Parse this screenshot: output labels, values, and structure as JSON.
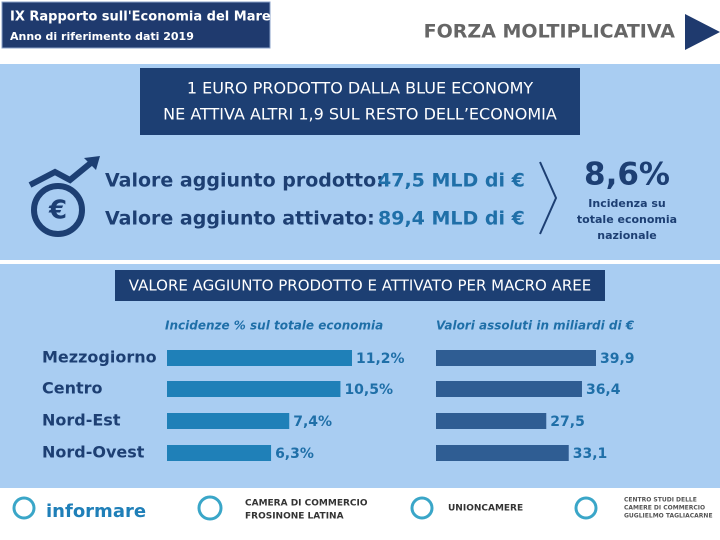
{
  "header": {
    "title": "IX Rapporto sull'Economia del Mare",
    "subtitle": "Anno di riferimento dati 2019",
    "section": "FORZA MOLTIPLICATIVA"
  },
  "banner": [
    "1 EURO PRODOTTO DALLA BLUE ECONOMY",
    "NE ATTIVA ALTRI 1,9 SUL RESTO DELL’ECONOMIA"
  ],
  "summary": {
    "rows": [
      [
        "Valore aggiunto prodotto:",
        "47,5 MLD di €"
      ],
      [
        "Valore aggiunto attivato:",
        "89,4 MLD di €"
      ]
    ],
    "share": "8,6%",
    "share_caption": [
      "Incidenza su",
      "totale economia",
      "nazionale"
    ]
  },
  "section_title": "VALORE AGGIUNTO PRODOTTO E ATTIVATO PER MACRO AREE",
  "chart_data": [
    {
      "type": "bar",
      "orientation": "horizontal",
      "title": "Incidenze % sul totale economia",
      "categories": [
        "Mezzogiorno",
        "Centro",
        "Nord-Est",
        "Nord-Ovest"
      ],
      "values": [
        11.2,
        10.5,
        7.4,
        6.3
      ],
      "value_labels": [
        "11,2%",
        "10,5%",
        "7,4%",
        "6,3%"
      ],
      "color": "#1f80b8"
    },
    {
      "type": "bar",
      "orientation": "horizontal",
      "title": "Valori assoluti in miliardi di €",
      "values": [
        39.9,
        36.4,
        27.5,
        33.1
      ],
      "value_labels": [
        "39,9",
        "36,4",
        "27,5",
        "33,1"
      ],
      "color": "#2f5d93"
    }
  ],
  "footer": {
    "logos": [
      "informare",
      "CAMERA DI COMMERCIO",
      "FROSINONE LATINA",
      "UNIONCAMERE",
      "CENTRO STUDI DELLE",
      "CAMERE DI COMMERCIO",
      "GUGLIELMO TAGLIACARNE"
    ]
  }
}
